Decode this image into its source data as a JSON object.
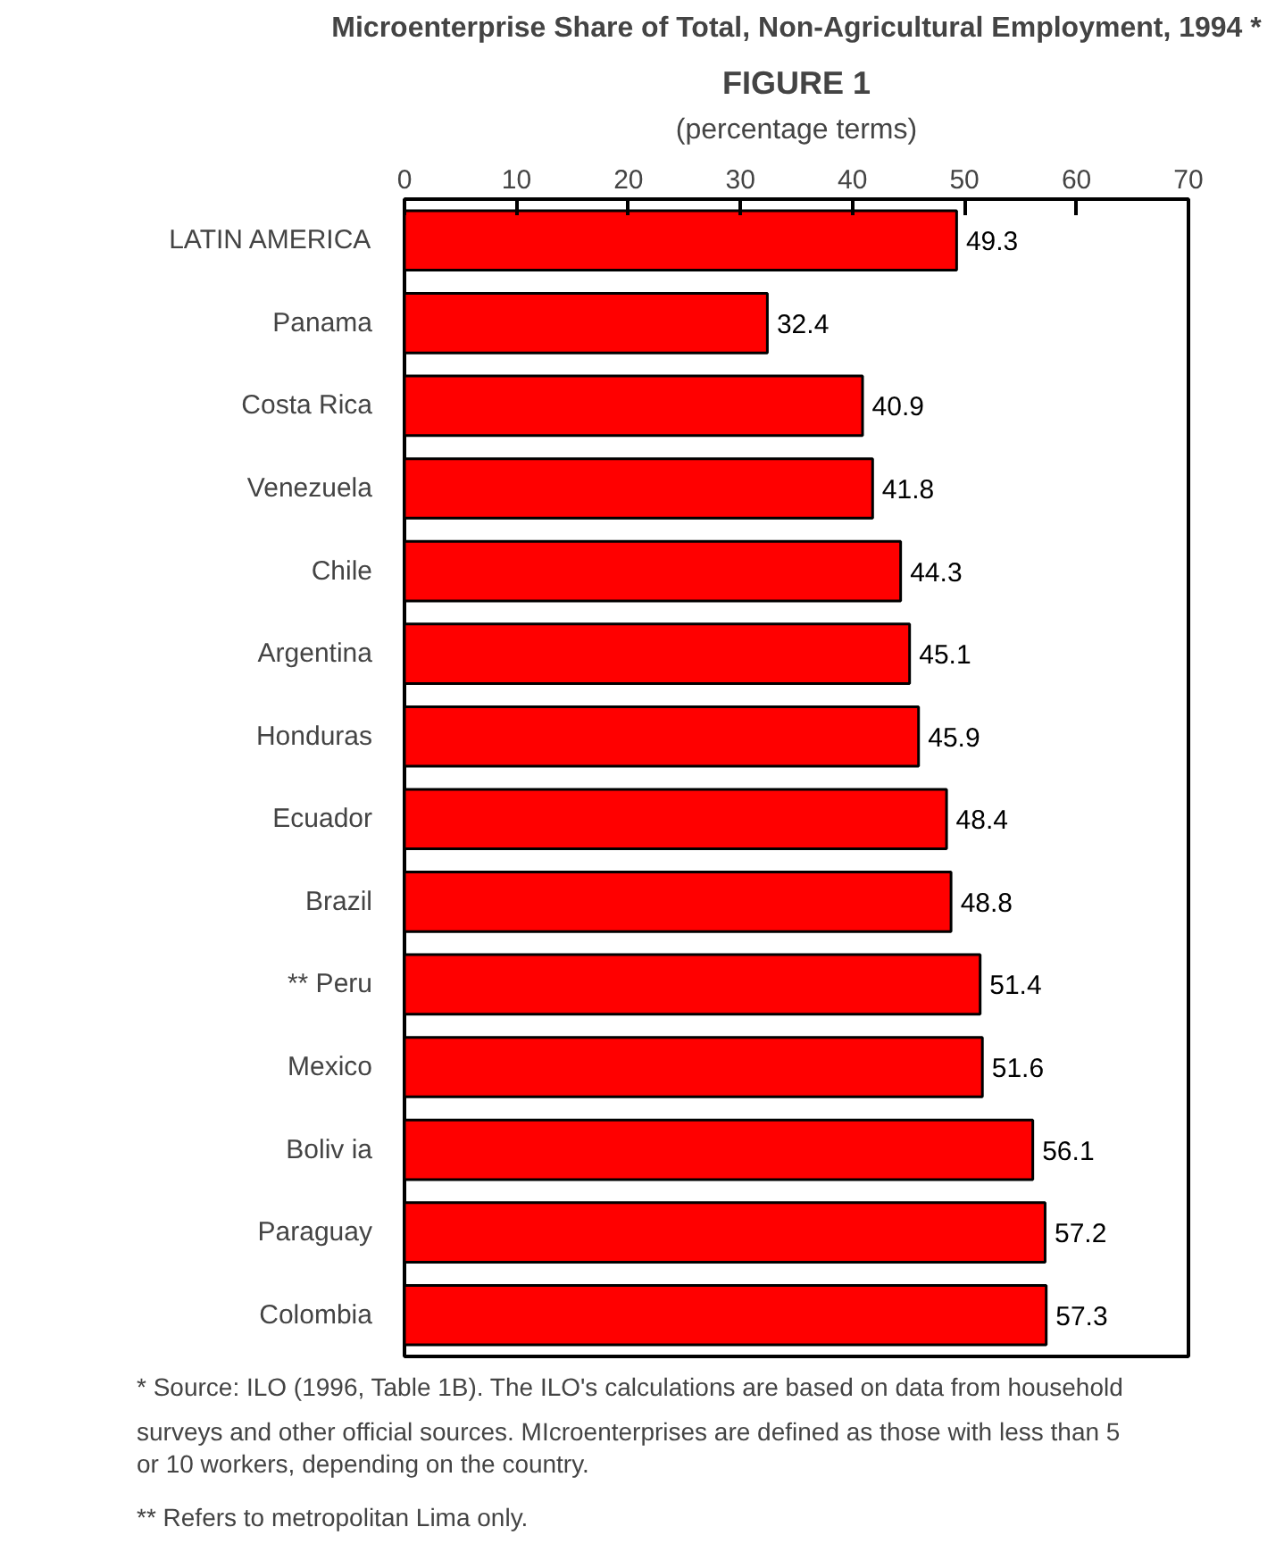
{
  "chart_data": {
    "type": "bar",
    "orientation": "horizontal",
    "title": "FIGURE 1",
    "subtitle": "Microenterprise Share of Total, Non-Agricultural Employment, 1994 *",
    "xlabel": "(percentage terms)",
    "categories": [
      "LATIN AMERICA",
      "Panama",
      "Costa Rica",
      "Venezuela",
      "Chile",
      "Argentina",
      "Honduras",
      "Ecuador",
      "Brazil",
      "** Peru",
      "Mexico",
      "Boliv ia",
      "Paraguay",
      "Colombia"
    ],
    "values": [
      49.3,
      32.4,
      40.9,
      41.8,
      44.3,
      45.1,
      45.9,
      48.4,
      48.8,
      51.4,
      51.6,
      56.1,
      57.2,
      57.3
    ],
    "color": "#ff0000",
    "xlim": [
      0,
      70
    ],
    "xticks": [
      0,
      10,
      20,
      30,
      40,
      50,
      60,
      70
    ],
    "grid": false,
    "data_labels": true,
    "annotations": [
      "*   Source: ILO (1996, Table 1B).  The ILO's calculations are based on data from household surveys and other official sources.  MIcroenterprises are defined as those with less than 5 or 10 workers, depending on the country.",
      "**  Refers to metropolitan Lima only."
    ]
  }
}
